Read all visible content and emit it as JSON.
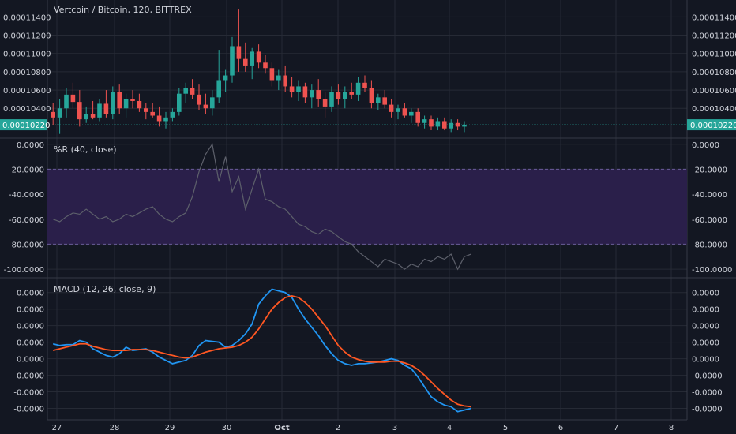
{
  "colors": {
    "background": "#131722",
    "grid": "#262a35",
    "separator": "#363a45",
    "axis_text": "#d1d4dc",
    "up": "#26a69a",
    "down": "#ef5350",
    "price_line": "#26a69a",
    "wr_line": "#5d606b",
    "wr_band": "#2a1f4a",
    "wr_band_edge": "#6a5c9a",
    "macd": "#2196f3",
    "signal": "#ff5722",
    "badge": "#26a69a",
    "badge_text": "#ffffff"
  },
  "chart_data": [
    {
      "type": "candlestick",
      "title": "Vertcoin / Bitcoin, 120, BITTREX",
      "x_ticks": [
        "27",
        "28",
        "29",
        "30",
        "Oct",
        "2",
        "3",
        "4",
        "5",
        "6",
        "7",
        "8"
      ],
      "y_ticks": [
        "0.00011400",
        "0.00011200",
        "0.00011000",
        "0.00010800",
        "0.00010600",
        "0.00010400"
      ],
      "y_range": [
        0.000101,
        0.0001155
      ],
      "last_price_label": "0.00010220",
      "last_price": 0.0001022,
      "candles": [
        {
          "o": 0.0001036,
          "h": 0.0001046,
          "l": 0.0001022,
          "c": 0.000103
        },
        {
          "o": 0.000103,
          "h": 0.000105,
          "l": 0.0001012,
          "c": 0.000104
        },
        {
          "o": 0.000104,
          "h": 0.0001062,
          "l": 0.000103,
          "c": 0.0001055
        },
        {
          "o": 0.0001055,
          "h": 0.0001068,
          "l": 0.000104,
          "c": 0.0001047
        },
        {
          "o": 0.0001047,
          "h": 0.000106,
          "l": 0.000102,
          "c": 0.0001028
        },
        {
          "o": 0.0001028,
          "h": 0.0001042,
          "l": 0.0001024,
          "c": 0.0001034
        },
        {
          "o": 0.0001034,
          "h": 0.0001048,
          "l": 0.0001028,
          "c": 0.000103
        },
        {
          "o": 0.000103,
          "h": 0.000105,
          "l": 0.0001026,
          "c": 0.0001045
        },
        {
          "o": 0.0001045,
          "h": 0.000106,
          "l": 0.000103,
          "c": 0.0001034
        },
        {
          "o": 0.0001034,
          "h": 0.0001064,
          "l": 0.0001028,
          "c": 0.0001058
        },
        {
          "o": 0.0001058,
          "h": 0.0001066,
          "l": 0.0001034,
          "c": 0.000104
        },
        {
          "o": 0.000104,
          "h": 0.0001056,
          "l": 0.000103,
          "c": 0.000105
        },
        {
          "o": 0.000105,
          "h": 0.000106,
          "l": 0.000104,
          "c": 0.0001048
        },
        {
          "o": 0.0001048,
          "h": 0.0001056,
          "l": 0.0001036,
          "c": 0.000104
        },
        {
          "o": 0.000104,
          "h": 0.0001046,
          "l": 0.0001028,
          "c": 0.0001036
        },
        {
          "o": 0.0001036,
          "h": 0.0001046,
          "l": 0.000103,
          "c": 0.0001032
        },
        {
          "o": 0.0001032,
          "h": 0.0001042,
          "l": 0.000102,
          "c": 0.0001026
        },
        {
          "o": 0.0001026,
          "h": 0.0001036,
          "l": 0.0001018,
          "c": 0.000103
        },
        {
          "o": 0.000103,
          "h": 0.000104,
          "l": 0.0001026,
          "c": 0.0001036
        },
        {
          "o": 0.0001036,
          "h": 0.0001062,
          "l": 0.0001032,
          "c": 0.0001056
        },
        {
          "o": 0.0001056,
          "h": 0.0001068,
          "l": 0.0001046,
          "c": 0.0001062
        },
        {
          "o": 0.0001062,
          "h": 0.0001072,
          "l": 0.000105,
          "c": 0.0001055
        },
        {
          "o": 0.0001055,
          "h": 0.0001066,
          "l": 0.0001038,
          "c": 0.0001044
        },
        {
          "o": 0.0001044,
          "h": 0.0001056,
          "l": 0.0001034,
          "c": 0.000104
        },
        {
          "o": 0.000104,
          "h": 0.000106,
          "l": 0.0001032,
          "c": 0.0001052
        },
        {
          "o": 0.0001052,
          "h": 0.0001104,
          "l": 0.0001046,
          "c": 0.000107
        },
        {
          "o": 0.000107,
          "h": 0.0001082,
          "l": 0.0001058,
          "c": 0.0001076
        },
        {
          "o": 0.0001076,
          "h": 0.0001118,
          "l": 0.0001068,
          "c": 0.0001108
        },
        {
          "o": 0.0001108,
          "h": 0.0001148,
          "l": 0.000108,
          "c": 0.0001094
        },
        {
          "o": 0.0001094,
          "h": 0.0001112,
          "l": 0.000108,
          "c": 0.0001086
        },
        {
          "o": 0.0001086,
          "h": 0.0001106,
          "l": 0.0001072,
          "c": 0.0001102
        },
        {
          "o": 0.0001102,
          "h": 0.000111,
          "l": 0.0001084,
          "c": 0.000109
        },
        {
          "o": 0.000109,
          "h": 0.0001098,
          "l": 0.0001078,
          "c": 0.0001084
        },
        {
          "o": 0.0001084,
          "h": 0.000109,
          "l": 0.0001064,
          "c": 0.000107
        },
        {
          "o": 0.000107,
          "h": 0.0001082,
          "l": 0.000106,
          "c": 0.0001076
        },
        {
          "o": 0.0001076,
          "h": 0.0001086,
          "l": 0.0001058,
          "c": 0.0001064
        },
        {
          "o": 0.0001064,
          "h": 0.0001074,
          "l": 0.0001052,
          "c": 0.0001058
        },
        {
          "o": 0.0001058,
          "h": 0.000107,
          "l": 0.0001048,
          "c": 0.0001064
        },
        {
          "o": 0.0001064,
          "h": 0.0001068,
          "l": 0.0001046,
          "c": 0.0001052
        },
        {
          "o": 0.0001052,
          "h": 0.0001066,
          "l": 0.000104,
          "c": 0.000106
        },
        {
          "o": 0.000106,
          "h": 0.0001072,
          "l": 0.0001042,
          "c": 0.000105
        },
        {
          "o": 0.000105,
          "h": 0.0001058,
          "l": 0.000103,
          "c": 0.0001042
        },
        {
          "o": 0.0001042,
          "h": 0.0001064,
          "l": 0.0001036,
          "c": 0.0001058
        },
        {
          "o": 0.0001058,
          "h": 0.0001066,
          "l": 0.0001044,
          "c": 0.000105
        },
        {
          "o": 0.000105,
          "h": 0.0001064,
          "l": 0.000104,
          "c": 0.0001058
        },
        {
          "o": 0.0001058,
          "h": 0.0001068,
          "l": 0.000105,
          "c": 0.0001055
        },
        {
          "o": 0.0001055,
          "h": 0.0001074,
          "l": 0.0001048,
          "c": 0.0001068
        },
        {
          "o": 0.0001068,
          "h": 0.0001076,
          "l": 0.0001058,
          "c": 0.0001062
        },
        {
          "o": 0.0001062,
          "h": 0.000107,
          "l": 0.000104,
          "c": 0.0001046
        },
        {
          "o": 0.0001046,
          "h": 0.0001056,
          "l": 0.0001038,
          "c": 0.0001052
        },
        {
          "o": 0.0001052,
          "h": 0.000106,
          "l": 0.000104,
          "c": 0.0001044
        },
        {
          "o": 0.0001044,
          "h": 0.000105,
          "l": 0.000103,
          "c": 0.0001036
        },
        {
          "o": 0.0001036,
          "h": 0.0001044,
          "l": 0.0001028,
          "c": 0.000104
        },
        {
          "o": 0.000104,
          "h": 0.0001046,
          "l": 0.000103,
          "c": 0.0001032
        },
        {
          "o": 0.0001032,
          "h": 0.000104,
          "l": 0.0001024,
          "c": 0.0001036
        },
        {
          "o": 0.0001036,
          "h": 0.000104,
          "l": 0.000102,
          "c": 0.0001024
        },
        {
          "o": 0.0001024,
          "h": 0.0001032,
          "l": 0.0001018,
          "c": 0.0001028
        },
        {
          "o": 0.0001028,
          "h": 0.0001032,
          "l": 0.0001016,
          "c": 0.000102
        },
        {
          "o": 0.000102,
          "h": 0.000103,
          "l": 0.0001016,
          "c": 0.0001026
        },
        {
          "o": 0.0001026,
          "h": 0.000103,
          "l": 0.0001016,
          "c": 0.0001018
        },
        {
          "o": 0.0001018,
          "h": 0.0001028,
          "l": 0.0001014,
          "c": 0.0001024
        },
        {
          "o": 0.0001024,
          "h": 0.0001028,
          "l": 0.0001016,
          "c": 0.000102
        },
        {
          "o": 0.000102,
          "h": 0.0001026,
          "l": 0.0001014,
          "c": 0.0001022
        }
      ]
    },
    {
      "type": "line",
      "title": "%R (40, close)",
      "y_ticks": [
        "0.0000",
        "-20.0000",
        "-40.0000",
        "-60.0000",
        "-80.0000",
        "-100.0000"
      ],
      "y_range": [
        -105,
        3
      ],
      "band": [
        -80,
        -20
      ],
      "values": [
        -60,
        -62,
        -58,
        -55,
        -56,
        -52,
        -56,
        -60,
        -58,
        -62,
        -60,
        -56,
        -58,
        -55,
        -52,
        -50,
        -56,
        -60,
        -62,
        -58,
        -55,
        -42,
        -22,
        -8,
        0,
        -30,
        -10,
        -38,
        -26,
        -52,
        -36,
        -20,
        -44,
        -46,
        -50,
        -52,
        -58,
        -64,
        -66,
        -70,
        -72,
        -68,
        -70,
        -74,
        -78,
        -80,
        -86,
        -90,
        -94,
        -98,
        -92,
        -94,
        -96,
        -100,
        -96,
        -98,
        -92,
        -94,
        -90,
        -92,
        -88,
        -100,
        -90,
        -88
      ]
    },
    {
      "type": "line",
      "title": "MACD (12, 26, close, 9)",
      "y_ticks": [
        "0.0000",
        "0.0000",
        "0.0000",
        "0.0000",
        "0.0000",
        "-0.0000",
        "-0.0000",
        "-0.0000"
      ],
      "y_range": [
        -0.9,
        0.75
      ],
      "series": [
        {
          "name": "MACD",
          "values": [
            -0.02,
            -0.04,
            -0.03,
            -0.03,
            0.02,
            0.0,
            -0.08,
            -0.12,
            -0.16,
            -0.18,
            -0.14,
            -0.06,
            -0.1,
            -0.09,
            -0.08,
            -0.12,
            -0.18,
            -0.22,
            -0.26,
            -0.24,
            -0.22,
            -0.16,
            -0.04,
            0.02,
            0.01,
            0.0,
            -0.06,
            -0.04,
            0.02,
            0.1,
            0.22,
            0.46,
            0.56,
            0.64,
            0.62,
            0.6,
            0.54,
            0.4,
            0.28,
            0.18,
            0.08,
            -0.04,
            -0.14,
            -0.22,
            -0.26,
            -0.28,
            -0.26,
            -0.26,
            -0.25,
            -0.24,
            -0.22,
            -0.2,
            -0.22,
            -0.28,
            -0.32,
            -0.42,
            -0.54,
            -0.66,
            -0.72,
            -0.76,
            -0.78,
            -0.84,
            -0.82,
            -0.8
          ]
        },
        {
          "name": "Signal",
          "values": [
            -0.1,
            -0.08,
            -0.06,
            -0.04,
            -0.02,
            -0.02,
            -0.05,
            -0.07,
            -0.09,
            -0.1,
            -0.1,
            -0.1,
            -0.09,
            -0.09,
            -0.09,
            -0.1,
            -0.12,
            -0.14,
            -0.16,
            -0.18,
            -0.19,
            -0.18,
            -0.15,
            -0.12,
            -0.1,
            -0.08,
            -0.07,
            -0.06,
            -0.04,
            0.0,
            0.06,
            0.16,
            0.28,
            0.4,
            0.48,
            0.54,
            0.56,
            0.54,
            0.48,
            0.4,
            0.3,
            0.2,
            0.08,
            -0.04,
            -0.12,
            -0.18,
            -0.21,
            -0.23,
            -0.24,
            -0.24,
            -0.24,
            -0.23,
            -0.23,
            -0.25,
            -0.28,
            -0.33,
            -0.4,
            -0.48,
            -0.56,
            -0.63,
            -0.7,
            -0.75,
            -0.77,
            -0.78
          ]
        }
      ]
    }
  ]
}
